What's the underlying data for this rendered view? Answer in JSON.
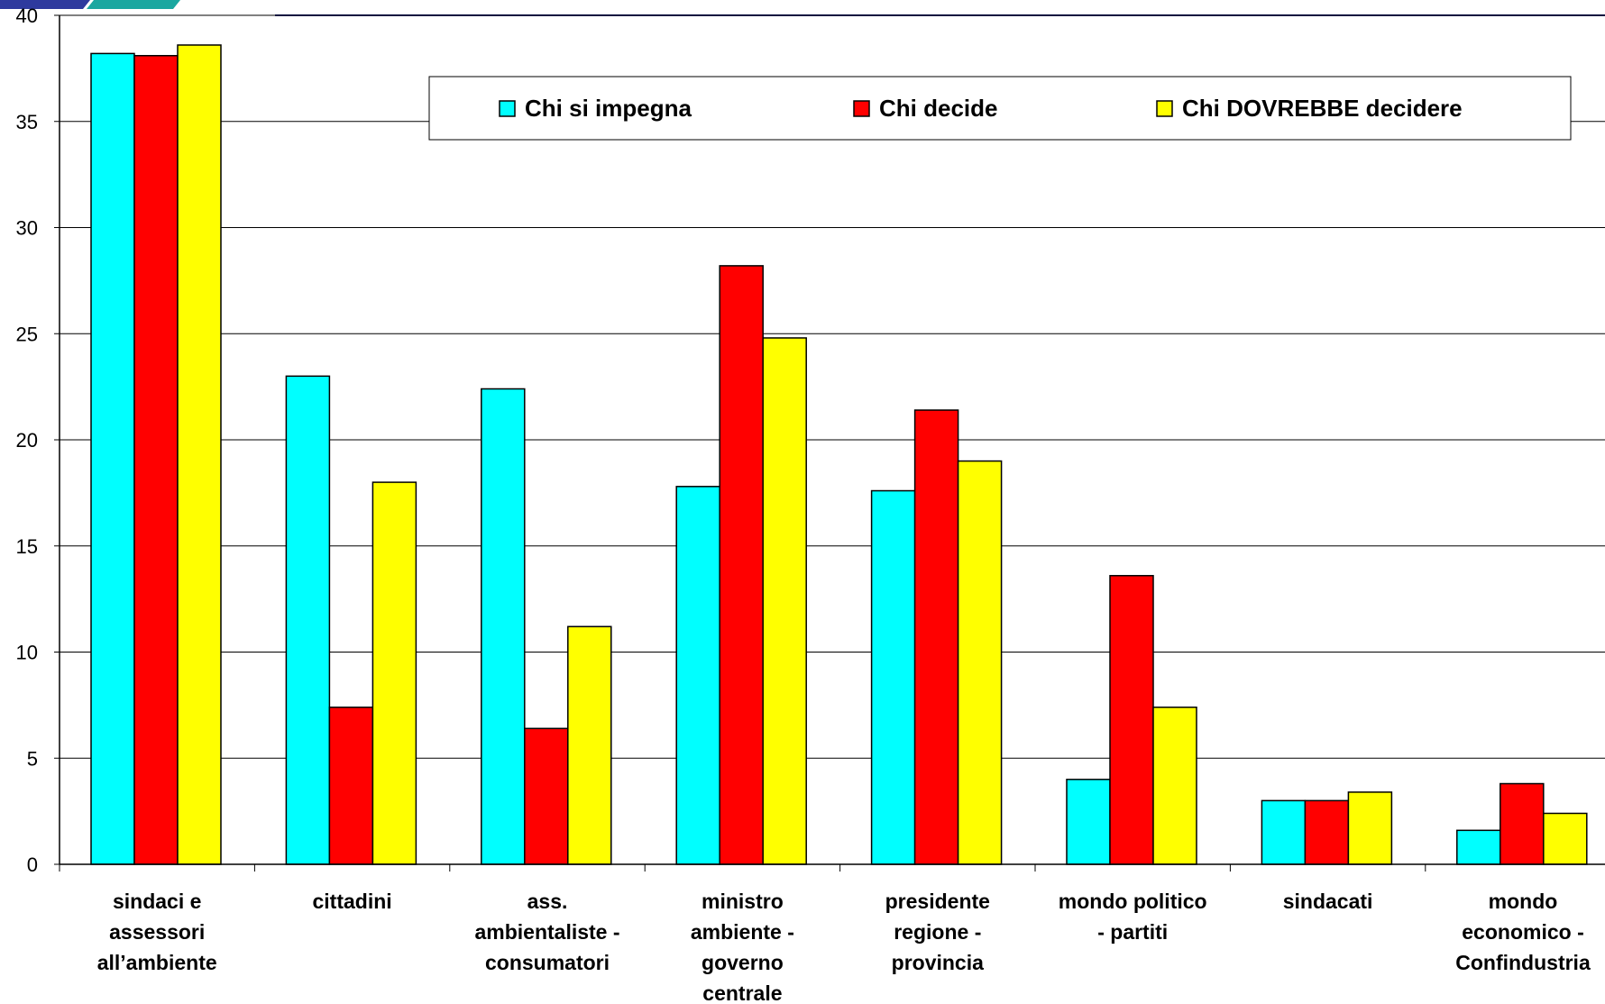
{
  "chart_data": {
    "type": "bar",
    "categories": [
      [
        "sindaci e",
        "assessori",
        "all’ambiente"
      ],
      [
        "cittadini"
      ],
      [
        "ass.",
        "ambientaliste -",
        "consumatori"
      ],
      [
        "ministro",
        "ambiente -",
        "governo",
        "centrale"
      ],
      [
        "presidente",
        "regione -",
        "provincia"
      ],
      [
        "mondo politico",
        "- partiti"
      ],
      [
        "sindacati"
      ],
      [
        "mondo",
        "economico -",
        "Confindustria"
      ]
    ],
    "series": [
      {
        "name": "Chi si impegna",
        "color": "#00ffff",
        "values": [
          38.2,
          23.0,
          22.4,
          17.8,
          17.6,
          4.0,
          3.0,
          1.6
        ]
      },
      {
        "name": "Chi decide",
        "color": "#ff0000",
        "values": [
          38.1,
          7.4,
          6.4,
          28.2,
          21.4,
          13.6,
          3.0,
          3.8
        ]
      },
      {
        "name": "Chi DOVREBBE decidere",
        "color": "#ffff00",
        "values": [
          38.6,
          18.0,
          11.2,
          24.8,
          19.0,
          7.4,
          3.4,
          2.4
        ]
      }
    ],
    "yticks": [
      0,
      5,
      10,
      15,
      20,
      25,
      30,
      35,
      40
    ],
    "ylim": [
      0,
      40
    ],
    "grid": true,
    "legend_position": "top-right",
    "title": "",
    "xlabel": "",
    "ylabel": ""
  },
  "decor": {
    "header_colors": [
      "#2e3a9e",
      "#1aa7a0"
    ]
  }
}
